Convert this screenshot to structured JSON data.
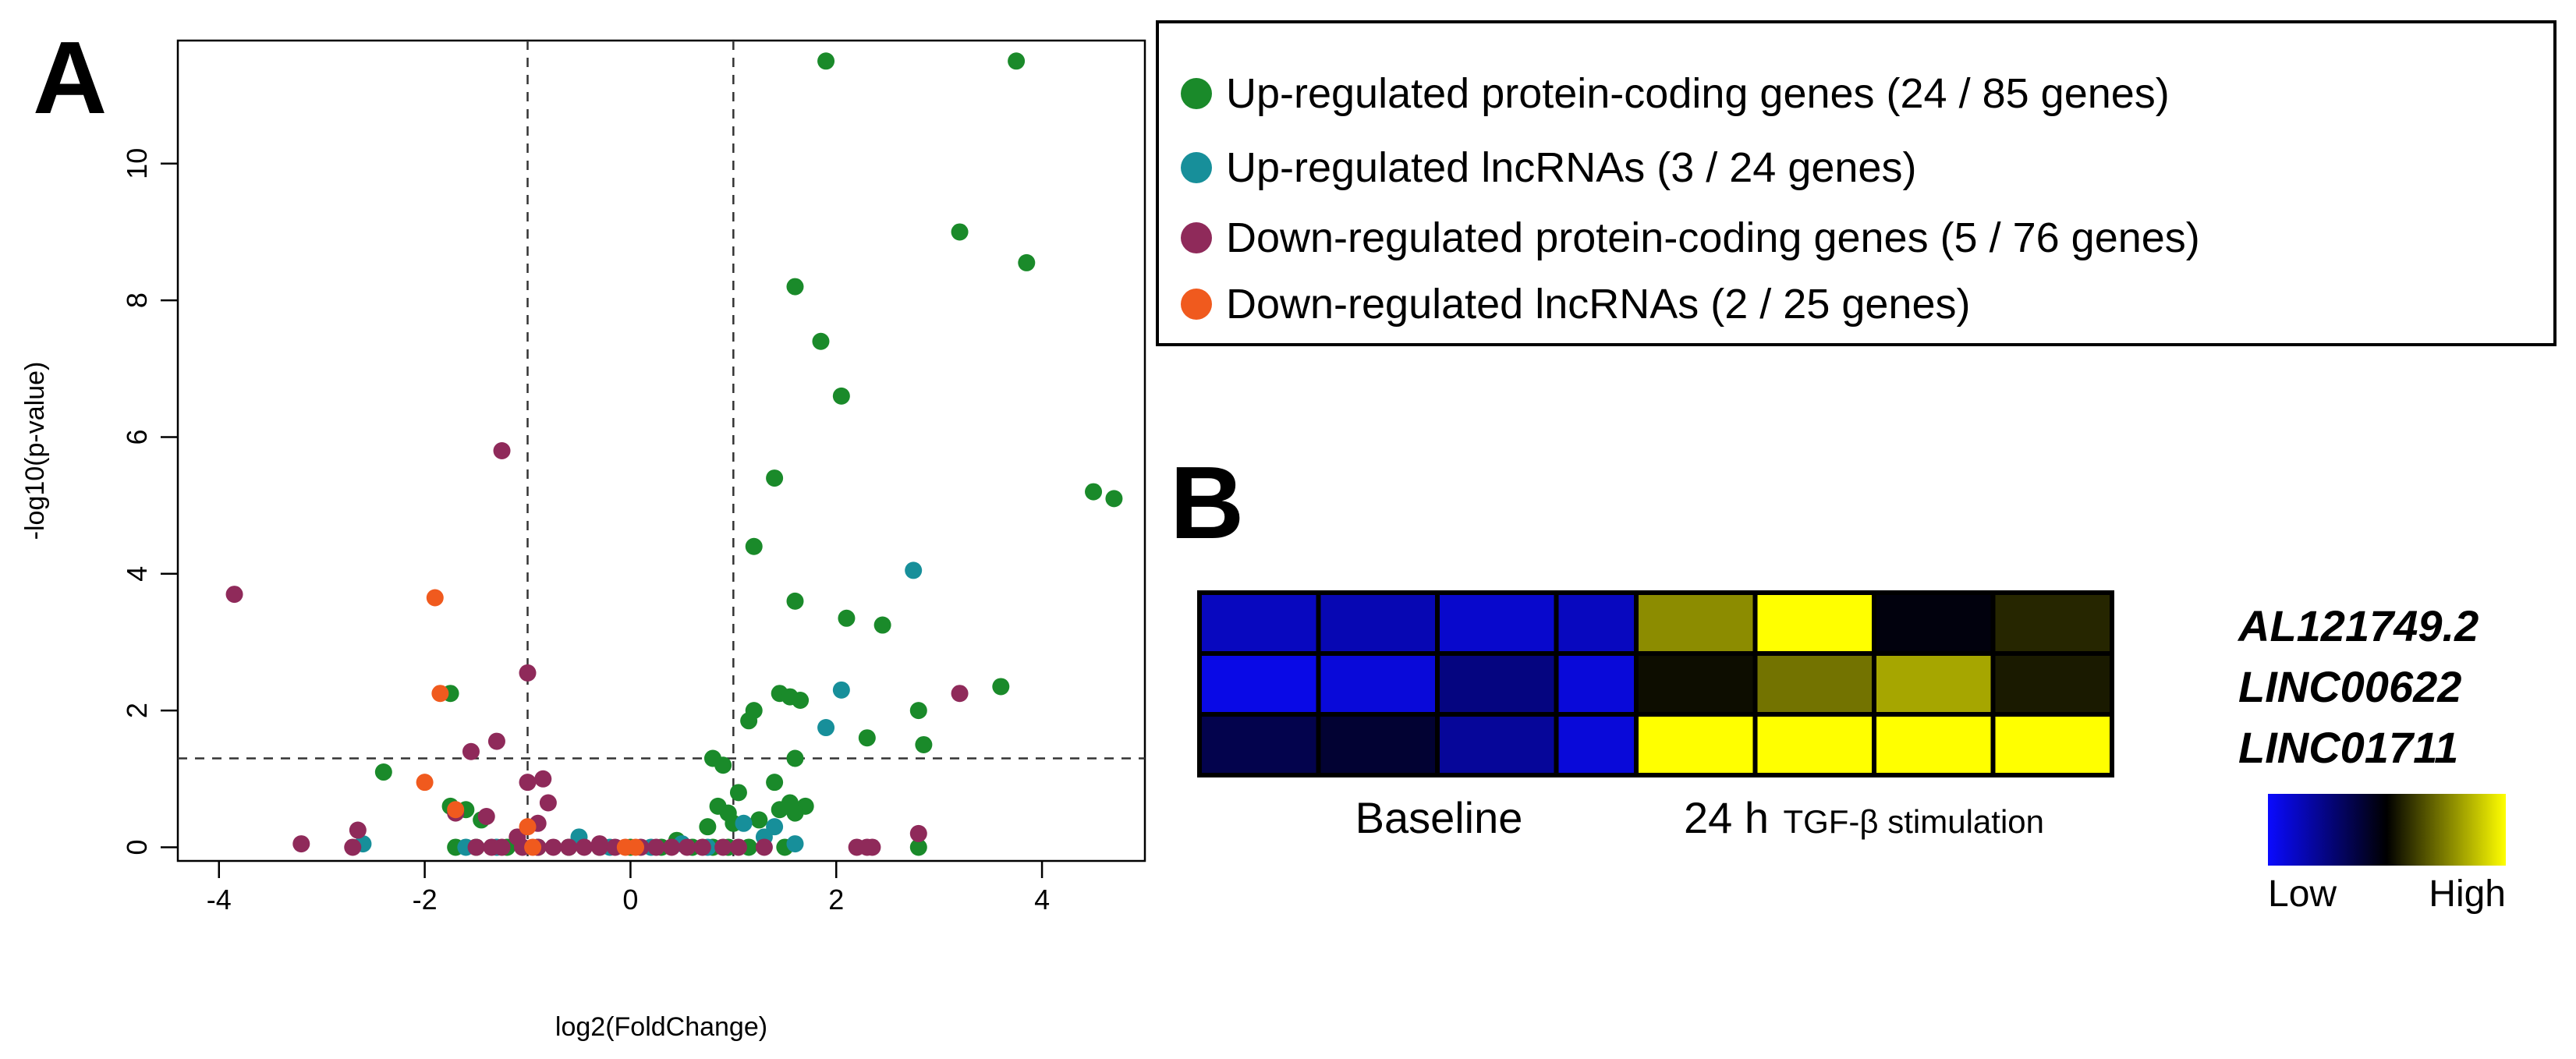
{
  "panel_a_letter": "A",
  "panel_b_letter": "B",
  "chart_data": [
    {
      "type": "scatter",
      "title": "",
      "xlabel": "log2(FoldChange)",
      "ylabel": "-log10(p-value)",
      "xlim": [
        -4.4,
        5.0
      ],
      "ylim": [
        -0.2,
        11.8
      ],
      "xticks": [
        -4,
        -2,
        0,
        2,
        4
      ],
      "yticks": [
        0,
        2,
        4,
        6,
        8,
        10
      ],
      "thresholds": {
        "log2fc": [
          -1,
          1
        ],
        "neg_log10_p": 1.3
      },
      "legend": {
        "position": "right",
        "entries": [
          {
            "series": "up_pc",
            "label": "Up-regulated protein-coding genes (24 / 85 genes)"
          },
          {
            "series": "up_lnc",
            "label": "Up-regulated lncRNAs (3 / 24 genes)"
          },
          {
            "series": "down_pc",
            "label": "Down-regulated protein-coding genes (5 / 76 genes)"
          },
          {
            "series": "down_lnc",
            "label": "Down-regulated lncRNAs (2 / 25 genes)"
          }
        ]
      },
      "series": [
        {
          "id": "up_pc",
          "name": "Up-regulated protein-coding genes",
          "color": "#1a8a2a",
          "points": [
            [
              1.9,
              11.5
            ],
            [
              3.75,
              11.5
            ],
            [
              3.2,
              9.0
            ],
            [
              3.85,
              8.55
            ],
            [
              1.6,
              8.2
            ],
            [
              1.85,
              7.4
            ],
            [
              2.05,
              6.6
            ],
            [
              4.5,
              5.2
            ],
            [
              4.7,
              5.1
            ],
            [
              1.4,
              5.4
            ],
            [
              1.2,
              4.4
            ],
            [
              1.6,
              3.6
            ],
            [
              2.1,
              3.35
            ],
            [
              2.45,
              3.25
            ],
            [
              1.45,
              2.25
            ],
            [
              1.55,
              2.2
            ],
            [
              1.65,
              2.15
            ],
            [
              3.6,
              2.35
            ],
            [
              2.8,
              2.0
            ],
            [
              1.2,
              2.0
            ],
            [
              1.15,
              1.85
            ],
            [
              2.3,
              1.6
            ],
            [
              2.85,
              1.5
            ],
            [
              1.6,
              1.3
            ],
            [
              0.8,
              1.3
            ],
            [
              0.9,
              1.2
            ],
            [
              1.4,
              0.95
            ],
            [
              1.7,
              0.6
            ],
            [
              1.55,
              0.65
            ],
            [
              1.45,
              0.55
            ],
            [
              0.85,
              0.6
            ],
            [
              0.95,
              0.5
            ],
            [
              1.0,
              0.35
            ],
            [
              1.05,
              0.8
            ],
            [
              1.25,
              0.4
            ],
            [
              1.6,
              0.5
            ],
            [
              0.75,
              0.3
            ],
            [
              -1.75,
              2.25
            ],
            [
              -2.4,
              1.1
            ],
            [
              -1.75,
              0.6
            ],
            [
              -1.6,
              0.55
            ],
            [
              -1.45,
              0.4
            ],
            [
              -1.7,
              0.0
            ],
            [
              -1.5,
              0.0
            ],
            [
              -1.2,
              0.0
            ],
            [
              -0.9,
              0.0
            ],
            [
              -0.6,
              0.0
            ],
            [
              -0.3,
              0.0
            ],
            [
              0.0,
              0.0
            ],
            [
              0.3,
              0.0
            ],
            [
              0.6,
              0.0
            ],
            [
              0.8,
              0.0
            ],
            [
              0.95,
              0.0
            ],
            [
              1.15,
              0.0
            ],
            [
              1.5,
              0.0
            ],
            [
              2.8,
              0.0
            ],
            [
              0.45,
              0.1
            ]
          ]
        },
        {
          "id": "up_lnc",
          "name": "Up-regulated lncRNAs",
          "color": "#178f9a",
          "points": [
            [
              2.75,
              4.05
            ],
            [
              2.05,
              2.3
            ],
            [
              1.9,
              1.75
            ],
            [
              -2.6,
              0.05
            ],
            [
              -1.6,
              0.0
            ],
            [
              -1.3,
              0.0
            ],
            [
              -0.5,
              0.15
            ],
            [
              -0.2,
              0.0
            ],
            [
              0.2,
              0.0
            ],
            [
              0.5,
              0.05
            ],
            [
              0.75,
              0.0
            ],
            [
              1.1,
              0.35
            ],
            [
              1.3,
              0.15
            ],
            [
              1.6,
              0.05
            ],
            [
              1.4,
              0.3
            ]
          ]
        },
        {
          "id": "down_pc",
          "name": "Down-regulated protein-coding genes",
          "color": "#8f2a5a",
          "points": [
            [
              -1.25,
              5.8
            ],
            [
              -3.85,
              3.7
            ],
            [
              -1.0,
              2.55
            ],
            [
              3.2,
              2.25
            ],
            [
              -1.3,
              1.55
            ],
            [
              -1.55,
              1.4
            ],
            [
              -0.85,
              1.0
            ],
            [
              -1.0,
              0.95
            ],
            [
              -0.8,
              0.65
            ],
            [
              -1.4,
              0.45
            ],
            [
              -2.65,
              0.25
            ],
            [
              -3.2,
              0.05
            ],
            [
              -2.7,
              0.0
            ],
            [
              -1.7,
              0.5
            ],
            [
              -1.1,
              0.15
            ],
            [
              -1.5,
              0.0
            ],
            [
              -1.35,
              0.0
            ],
            [
              -1.25,
              0.0
            ],
            [
              -1.05,
              0.0
            ],
            [
              -0.9,
              0.0
            ],
            [
              -0.75,
              0.0
            ],
            [
              -0.6,
              0.0
            ],
            [
              -0.45,
              0.0
            ],
            [
              -0.3,
              0.0
            ],
            [
              -0.15,
              0.0
            ],
            [
              0.1,
              0.0
            ],
            [
              0.25,
              0.0
            ],
            [
              0.4,
              0.0
            ],
            [
              0.55,
              0.0
            ],
            [
              0.7,
              0.0
            ],
            [
              0.9,
              0.0
            ],
            [
              1.05,
              0.0
            ],
            [
              1.3,
              0.0
            ],
            [
              2.2,
              0.0
            ],
            [
              2.3,
              0.0
            ],
            [
              2.35,
              0.0
            ],
            [
              2.8,
              0.2
            ],
            [
              -0.3,
              0.05
            ],
            [
              -0.9,
              0.35
            ]
          ]
        },
        {
          "id": "down_lnc",
          "name": "Down-regulated lncRNAs",
          "color": "#f05a1e",
          "points": [
            [
              -1.9,
              3.65
            ],
            [
              -1.85,
              2.25
            ],
            [
              -2.0,
              0.95
            ],
            [
              -1.7,
              0.55
            ],
            [
              -1.0,
              0.3
            ],
            [
              -0.05,
              0.0
            ],
            [
              0.05,
              0.0
            ],
            [
              -0.95,
              0.0
            ]
          ]
        }
      ]
    },
    {
      "type": "heatmap",
      "rows": [
        "AL121749.2",
        "LINC00622",
        "LINC01711"
      ],
      "groups": [
        {
          "label_main": "Baseline",
          "label_small": "",
          "columns": 4
        },
        {
          "label_main": "24 h",
          "label_small": "TGF-β stimulation",
          "columns": 4
        }
      ],
      "values": [
        [
          -0.75,
          -0.7,
          -0.8,
          -0.75,
          0.55,
          1.0,
          -0.05,
          0.15
        ],
        [
          -0.9,
          -0.85,
          -0.5,
          -0.85,
          0.05,
          0.45,
          0.65,
          0.1
        ],
        [
          -0.3,
          -0.2,
          -0.6,
          -0.85,
          1.0,
          1.0,
          1.0,
          1.0
        ]
      ],
      "color_scale": {
        "min_label": "Low",
        "max_label": "High",
        "colors": [
          "#0a0aff",
          "#000000",
          "#ffff00"
        ],
        "range": [
          -1,
          1
        ]
      }
    }
  ]
}
